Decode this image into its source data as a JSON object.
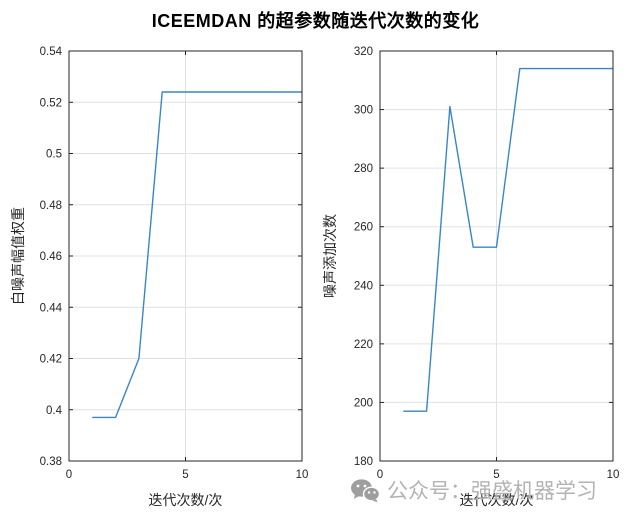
{
  "figure": {
    "title": "ICEEMDAN 的超参数随迭代次数的变化"
  },
  "watermark": {
    "icon": "wechat-icon",
    "text": "公众号：强盛机器学习"
  },
  "colors": {
    "line": "#3a86c4",
    "axis": "#262626",
    "grid": "#e2e2e2",
    "tick_label": "#262626",
    "title": "#000000",
    "watermark_text": "#b3b3b3",
    "watermark_icon": "#9e9e9e"
  },
  "chart_data": [
    {
      "type": "line",
      "x": [
        1,
        2,
        3,
        4,
        5,
        6,
        7,
        8,
        9,
        10
      ],
      "values": [
        0.397,
        0.397,
        0.42,
        0.524,
        0.524,
        0.524,
        0.524,
        0.524,
        0.524,
        0.524
      ],
      "xlabel": "迭代次数/次",
      "ylabel": "白噪声幅值权重",
      "xlim": [
        0,
        10
      ],
      "ylim": [
        0.38,
        0.54
      ],
      "xticks": [
        0,
        5,
        10
      ],
      "xtick_labels": [
        "0",
        "5",
        "10"
      ],
      "yticks": [
        0.38,
        0.4,
        0.42,
        0.44,
        0.46,
        0.48,
        0.5,
        0.52,
        0.54
      ],
      "ytick_labels": [
        "0.38",
        "0.4",
        "0.42",
        "0.44",
        "0.46",
        "0.48",
        "0.5",
        "0.52",
        "0.54"
      ],
      "grid": true,
      "legend": null
    },
    {
      "type": "line",
      "x": [
        1,
        2,
        3,
        4,
        5,
        6,
        7,
        8,
        9,
        10
      ],
      "values": [
        197,
        197,
        301,
        253,
        253,
        314,
        314,
        314,
        314,
        314
      ],
      "xlabel": "迭代次数/次",
      "ylabel": "噪声添加次数",
      "xlim": [
        0,
        10
      ],
      "ylim": [
        180,
        320
      ],
      "xticks": [
        0,
        5,
        10
      ],
      "xtick_labels": [
        "0",
        "5",
        "10"
      ],
      "yticks": [
        180,
        200,
        220,
        240,
        260,
        280,
        300,
        320
      ],
      "ytick_labels": [
        "180",
        "200",
        "220",
        "240",
        "260",
        "280",
        "300",
        "320"
      ],
      "grid": true,
      "legend": null
    }
  ]
}
